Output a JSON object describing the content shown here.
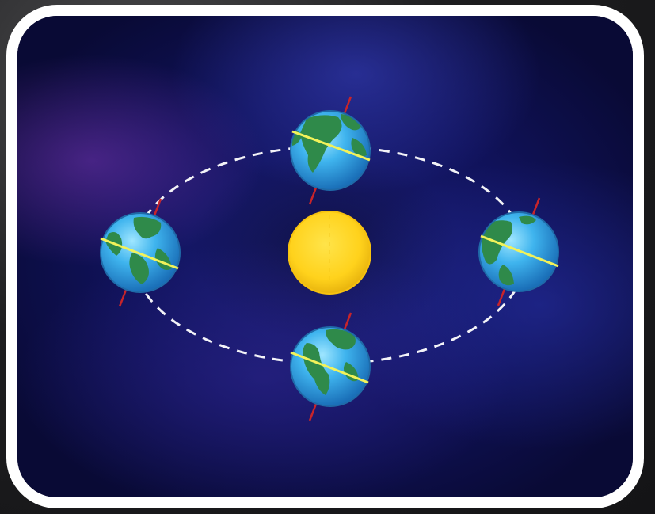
{
  "colors": {
    "frame_border": "#ffffff",
    "orbit_path": "#ffffff",
    "sun": "#ffd21c",
    "ocean": "#3fb4ee",
    "land": "#2f8a4a",
    "equator_line": "#f2f25a",
    "axis_line": "#c8242a"
  },
  "diagram": {
    "center_body": "sun",
    "orbiting_body": "earth",
    "earth_positions": [
      "top",
      "right",
      "bottom",
      "left"
    ],
    "orbit_style": "dashed-ellipse",
    "axis_tilt_shown": true
  }
}
